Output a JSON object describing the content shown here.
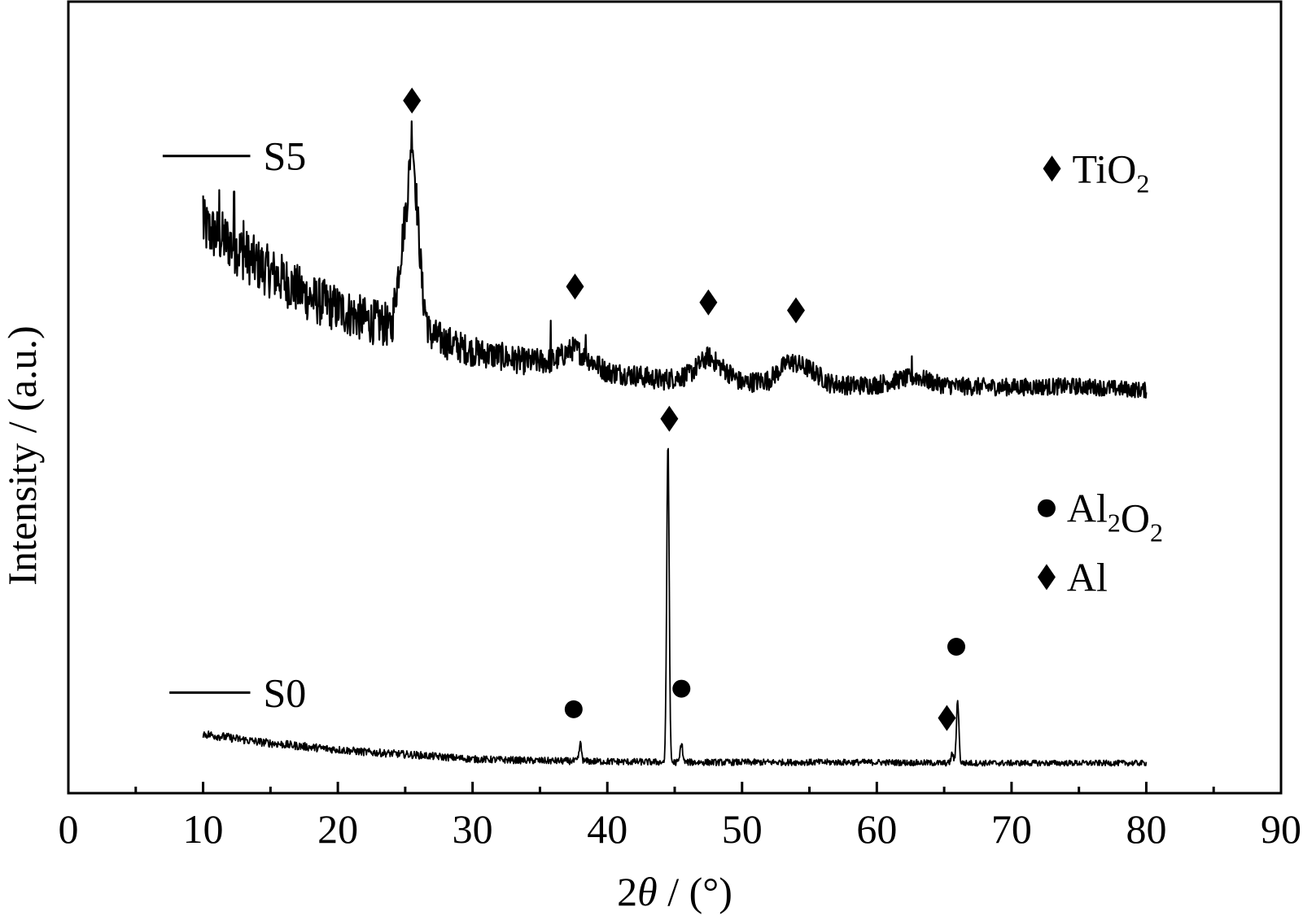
{
  "chart_data": {
    "type": "line",
    "title": "",
    "xlabel_pre": "2",
    "xlabel_theta": "θ",
    "xlabel_post": " / (°)",
    "ylabel": "Intensity / (a.u.)",
    "xlim": [
      0,
      90
    ],
    "ylim": [
      0,
      100
    ],
    "x_ticks": [
      0,
      10,
      20,
      30,
      40,
      50,
      60,
      70,
      80,
      90
    ],
    "x_tick_labels": [
      "0",
      "10",
      "20",
      "30",
      "40",
      "50",
      "60",
      "70",
      "80",
      "90"
    ],
    "x_minor_ticks": [
      5,
      15,
      25,
      35,
      45,
      55,
      65,
      75,
      85
    ],
    "grid": false,
    "y_ticks_shown": false,
    "series": [
      {
        "name": "S5",
        "color": "#000000",
        "baseline": [
          [
            10,
            71.5
          ],
          [
            12,
            69.5
          ],
          [
            14,
            66.8
          ],
          [
            16,
            64.8
          ],
          [
            18,
            62.5
          ],
          [
            20,
            61.2
          ],
          [
            22,
            59.8
          ],
          [
            24,
            59.0
          ],
          [
            24.8,
            70
          ],
          [
            25.2,
            76
          ],
          [
            25.5,
            84
          ],
          [
            25.8,
            76
          ],
          [
            26.3,
            63
          ],
          [
            26.8,
            58
          ],
          [
            28,
            57.0
          ],
          [
            30,
            55.8
          ],
          [
            32,
            55.2
          ],
          [
            34,
            54.5
          ],
          [
            36,
            54.6
          ],
          [
            37.5,
            56.2
          ],
          [
            38.5,
            55.0
          ],
          [
            40,
            53.2
          ],
          [
            42,
            52.8
          ],
          [
            44,
            52.2
          ],
          [
            46,
            52.8
          ],
          [
            47.5,
            55.2
          ],
          [
            48.5,
            53.8
          ],
          [
            50,
            51.8
          ],
          [
            52,
            52.2
          ],
          [
            53.5,
            54.6
          ],
          [
            55,
            53.6
          ],
          [
            56.5,
            51.8
          ],
          [
            58,
            51.5
          ],
          [
            60,
            51.6
          ],
          [
            61.5,
            52.2
          ],
          [
            63,
            52.6
          ],
          [
            64.5,
            51.7
          ],
          [
            66,
            51.4
          ],
          [
            70,
            51.3
          ],
          [
            75,
            51.4
          ],
          [
            80,
            50.9
          ]
        ],
        "noise_amplitude": [
          [
            10,
            3.6
          ],
          [
            24,
            2.8
          ],
          [
            30,
            1.9
          ],
          [
            40,
            1.4
          ],
          [
            80,
            1.0
          ]
        ],
        "spikes": [
          [
            10,
            75.5
          ],
          [
            11.2,
            76.2
          ],
          [
            12.3,
            76.0
          ],
          [
            13.0,
            72.3
          ],
          [
            23.8,
            59.8
          ],
          [
            35.8,
            59.7
          ],
          [
            38.4,
            57.9
          ],
          [
            62.6,
            55.2
          ]
        ]
      },
      {
        "name": "S0",
        "color": "#000000",
        "baseline": [
          [
            10,
            7.5
          ],
          [
            14,
            6.5
          ],
          [
            18,
            5.8
          ],
          [
            22,
            5.2
          ],
          [
            26,
            4.8
          ],
          [
            30,
            4.3
          ],
          [
            35,
            4.1
          ],
          [
            40,
            4.0
          ],
          [
            45,
            3.9
          ],
          [
            50,
            3.9
          ],
          [
            55,
            3.9
          ],
          [
            60,
            3.9
          ],
          [
            65,
            3.8
          ],
          [
            70,
            3.8
          ],
          [
            80,
            3.8
          ]
        ],
        "noise_amplitude": [
          [
            10,
            0.55
          ],
          [
            30,
            0.45
          ],
          [
            80,
            0.35
          ]
        ],
        "peaks": [
          [
            38.0,
            6.2
          ],
          [
            44.5,
            44.4
          ],
          [
            45.5,
            6.3
          ],
          [
            65.6,
            5.0
          ],
          [
            66.0,
            11.8
          ]
        ]
      }
    ],
    "peak_markers": [
      {
        "x": 25.5,
        "y": 87.5,
        "symbol": "diamond"
      },
      {
        "x": 37.6,
        "y": 64.0,
        "symbol": "diamond"
      },
      {
        "x": 47.5,
        "y": 62.0,
        "symbol": "diamond"
      },
      {
        "x": 54.0,
        "y": 61.0,
        "symbol": "diamond"
      },
      {
        "x": 44.6,
        "y": 47.3,
        "symbol": "diamond"
      },
      {
        "x": 37.5,
        "y": 10.6,
        "symbol": "circle"
      },
      {
        "x": 45.5,
        "y": 13.2,
        "symbol": "circle"
      },
      {
        "x": 65.9,
        "y": 18.5,
        "symbol": "circle"
      },
      {
        "x": 65.2,
        "y": 9.5,
        "symbol": "diamond"
      }
    ],
    "series_labels": [
      {
        "text": "S5",
        "line_x": [
          7,
          13.5
        ],
        "y": 80.5
      },
      {
        "text": "S0",
        "line_x": [
          7.5,
          13.5
        ],
        "y": 12.7
      }
    ],
    "legend_entries": [
      {
        "symbol": "diamond",
        "base": "TiO",
        "sub": "2",
        "base2": "",
        "sub2": "",
        "x": 73,
        "y": 78.9
      },
      {
        "symbol": "circle",
        "base": "Al",
        "sub": "2",
        "base2": "O",
        "sub2": "2",
        "x": 72.6,
        "y": 36.0
      },
      {
        "symbol": "diamond",
        "base": "Al",
        "sub": "",
        "base2": "",
        "sub2": "",
        "x": 72.6,
        "y": 27.3
      }
    ]
  }
}
